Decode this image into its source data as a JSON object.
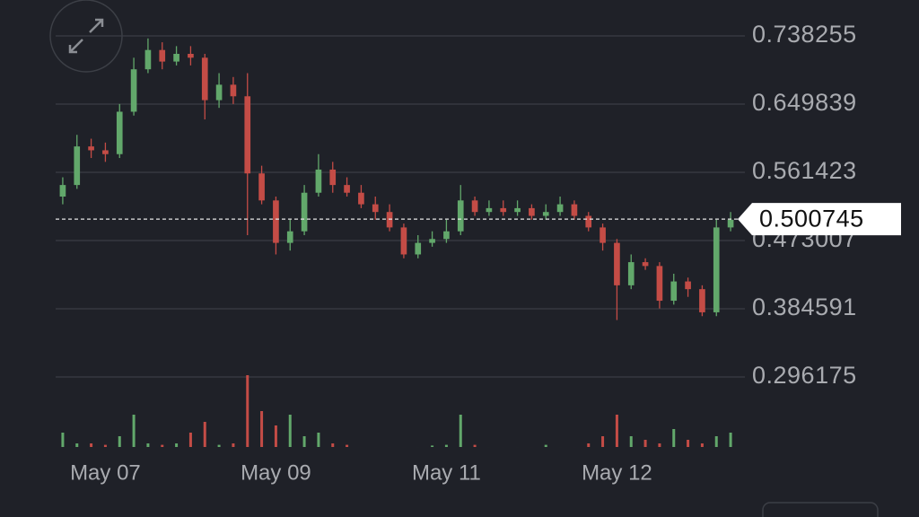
{
  "chart_data": {
    "type": "candlestick",
    "ylim": [
      0.2729,
      0.7848
    ],
    "yticks": [
      0.738255,
      0.649839,
      0.561423,
      0.473007,
      0.384591,
      0.296175
    ],
    "xlim": [
      -0.5,
      47.5
    ],
    "xticks": [
      {
        "value": 3,
        "label": "May 07"
      },
      {
        "value": 15,
        "label": "May 09"
      },
      {
        "value": 27,
        "label": "May 11"
      },
      {
        "value": 39,
        "label": "May 12"
      }
    ],
    "grid": true,
    "up_color": "#62a86b",
    "down_color": "#c44c46",
    "last_price": 0.500745,
    "open": [
      0.53,
      0.545,
      0.595,
      0.59,
      0.585,
      0.64,
      0.695,
      0.72,
      0.705,
      0.715,
      0.71,
      0.655,
      0.675,
      0.66,
      0.56,
      0.525,
      0.47,
      0.485,
      0.535,
      0.565,
      0.545,
      0.535,
      0.52,
      0.51,
      0.49,
      0.455,
      0.47,
      0.475,
      0.485,
      0.525,
      0.51,
      0.515,
      0.51,
      0.515,
      0.505,
      0.51,
      0.52,
      0.505,
      0.49,
      0.47,
      0.415,
      0.445,
      0.44,
      0.395,
      0.42,
      0.41,
      0.38,
      0.49
    ],
    "high": [
      0.555,
      0.61,
      0.605,
      0.6,
      0.65,
      0.71,
      0.735,
      0.73,
      0.725,
      0.725,
      0.715,
      0.69,
      0.685,
      0.69,
      0.57,
      0.53,
      0.5,
      0.545,
      0.585,
      0.575,
      0.555,
      0.545,
      0.53,
      0.52,
      0.495,
      0.48,
      0.485,
      0.5,
      0.545,
      0.53,
      0.525,
      0.525,
      0.525,
      0.52,
      0.52,
      0.53,
      0.525,
      0.51,
      0.495,
      0.475,
      0.455,
      0.45,
      0.445,
      0.43,
      0.425,
      0.415,
      0.5,
      0.51
    ],
    "low": [
      0.52,
      0.54,
      0.58,
      0.575,
      0.58,
      0.635,
      0.69,
      0.695,
      0.7,
      0.7,
      0.63,
      0.645,
      0.65,
      0.48,
      0.52,
      0.455,
      0.46,
      0.48,
      0.53,
      0.535,
      0.53,
      0.515,
      0.5,
      0.485,
      0.45,
      0.45,
      0.465,
      0.47,
      0.48,
      0.505,
      0.505,
      0.505,
      0.505,
      0.5,
      0.5,
      0.505,
      0.5,
      0.485,
      0.46,
      0.37,
      0.41,
      0.435,
      0.385,
      0.39,
      0.4,
      0.375,
      0.375,
      0.485
    ],
    "close": [
      0.545,
      0.595,
      0.59,
      0.585,
      0.64,
      0.695,
      0.72,
      0.705,
      0.715,
      0.71,
      0.655,
      0.675,
      0.66,
      0.56,
      0.525,
      0.47,
      0.485,
      0.535,
      0.565,
      0.545,
      0.535,
      0.52,
      0.51,
      0.49,
      0.455,
      0.47,
      0.475,
      0.485,
      0.525,
      0.51,
      0.515,
      0.51,
      0.515,
      0.505,
      0.51,
      0.52,
      0.505,
      0.49,
      0.47,
      0.415,
      0.445,
      0.44,
      0.395,
      0.42,
      0.41,
      0.38,
      0.49,
      0.5
    ],
    "volume": [
      20,
      5,
      5,
      3,
      15,
      45,
      5,
      3,
      5,
      20,
      35,
      3,
      5,
      100,
      50,
      30,
      45,
      15,
      20,
      5,
      3,
      0,
      0,
      0,
      0,
      0,
      2,
      3,
      45,
      3,
      0,
      0,
      0,
      0,
      3,
      0,
      0,
      5,
      15,
      45,
      15,
      10,
      5,
      25,
      10,
      5,
      15,
      20
    ]
  }
}
